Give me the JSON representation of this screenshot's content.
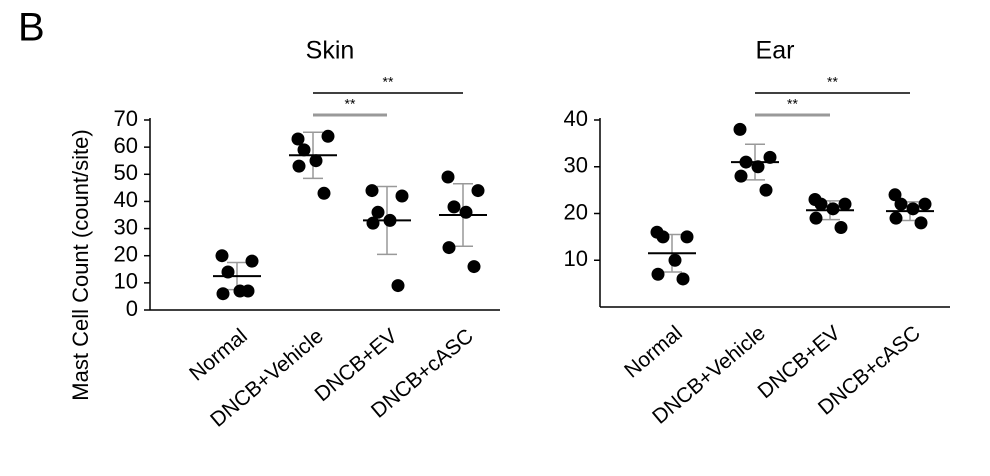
{
  "panel_label": "B",
  "chart_data": [
    {
      "type": "strip",
      "title": "Skin",
      "y_label": "Mast Cell Count (count/site)",
      "categories": [
        "Normal",
        "DNCB+Vehicle",
        "DNCB+EV",
        "DNCB+cASC"
      ],
      "values": [
        [
          20,
          18,
          14,
          7,
          6,
          7
        ],
        [
          63,
          64,
          59,
          55,
          53,
          43
        ],
        [
          44,
          42,
          36,
          33,
          32,
          9
        ],
        [
          49,
          44,
          38,
          36,
          23,
          16
        ]
      ],
      "means": [
        12.5,
        57,
        33,
        35
      ],
      "sd": [
        5,
        8.5,
        12.5,
        11.5
      ],
      "color": "#000000",
      "ylim": [
        0,
        70
      ],
      "yticks": [
        0,
        10,
        20,
        30,
        40,
        50,
        60,
        70
      ],
      "significance": [
        {
          "from": 1,
          "to": 2,
          "label": "**"
        },
        {
          "from": 1,
          "to": 3,
          "label": "**"
        }
      ]
    },
    {
      "type": "strip",
      "title": "Ear",
      "categories": [
        "Normal",
        "DNCB+Vehicle",
        "DNCB+EV",
        "DNCB+cASC"
      ],
      "values": [
        [
          16,
          15,
          15,
          10,
          7,
          6
        ],
        [
          38,
          32,
          31,
          30,
          28,
          25
        ],
        [
          23,
          22,
          22,
          21,
          19,
          17
        ],
        [
          24,
          22,
          22,
          21,
          19,
          18
        ]
      ],
      "means": [
        11.5,
        31,
        20.7,
        20.5
      ],
      "sd": [
        4,
        3.8,
        2,
        2
      ],
      "color": "#000000",
      "ylim": [
        0,
        40
      ],
      "yticks": [
        10,
        20,
        30,
        40
      ],
      "significance": [
        {
          "from": 1,
          "to": 2,
          "label": "**"
        },
        {
          "from": 1,
          "to": 3,
          "label": "**"
        }
      ]
    }
  ]
}
